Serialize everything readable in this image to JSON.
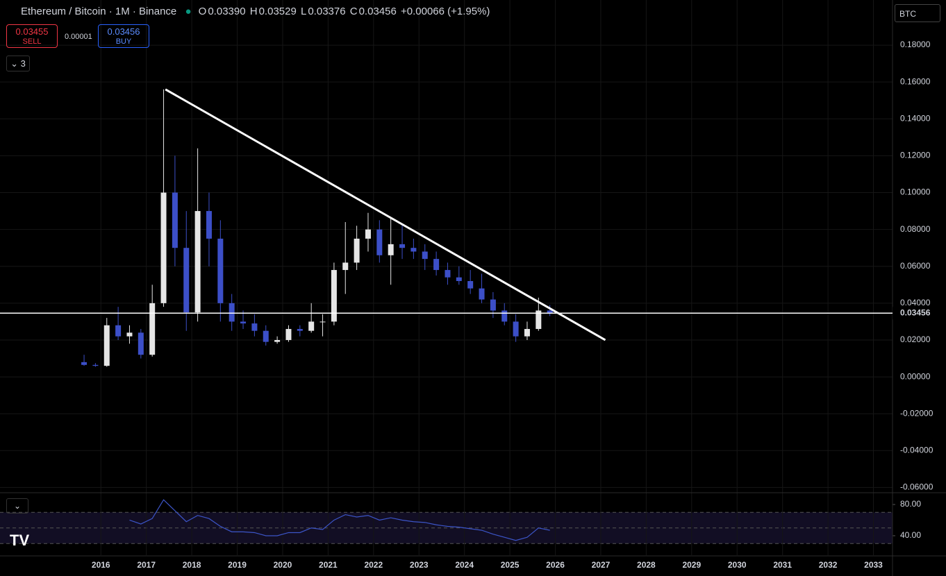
{
  "header": {
    "symbol": "Ethereum / Bitcoin · 1M · Binance",
    "open_label": "O",
    "open": "0.03390",
    "high_label": "H",
    "high": "0.03529",
    "low_label": "L",
    "low": "0.03376",
    "close_label": "C",
    "close": "0.03456",
    "change": "+0.00066 (+1.95%)"
  },
  "trade": {
    "sell_price": "0.03455",
    "sell_label": "SELL",
    "spread": "0.00001",
    "buy_price": "0.03456",
    "buy_label": "BUY"
  },
  "indicators_count": "3",
  "currency": "BTC",
  "chart_data": {
    "type": "candlestick",
    "x": [
      2015.63,
      2015.88,
      2016.13,
      2016.38,
      2016.63,
      2016.88,
      2017.13,
      2017.38,
      2017.63,
      2017.88,
      2018.13,
      2018.38,
      2018.63,
      2018.88,
      2019.13,
      2019.38,
      2019.63,
      2019.88,
      2020.13,
      2020.38,
      2020.63,
      2020.88,
      2021.13,
      2021.38,
      2021.63,
      2021.88,
      2022.13,
      2022.38,
      2022.63,
      2022.88,
      2023.13,
      2023.38,
      2023.63,
      2023.88,
      2024.13,
      2024.38,
      2024.63,
      2024.88,
      2025.13,
      2025.38,
      2025.63,
      2025.88
    ],
    "open": [
      0.008,
      0.0065,
      0.006,
      0.028,
      0.022,
      0.024,
      0.012,
      0.04,
      0.1,
      0.07,
      0.035,
      0.09,
      0.075,
      0.04,
      0.03,
      0.029,
      0.025,
      0.019,
      0.02,
      0.026,
      0.025,
      0.03,
      0.03,
      0.058,
      0.062,
      0.075,
      0.08,
      0.066,
      0.072,
      0.07,
      0.068,
      0.064,
      0.058,
      0.054,
      0.052,
      0.048,
      0.042,
      0.036,
      0.03,
      0.022,
      0.026,
      0.036
    ],
    "high": [
      0.012,
      0.0075,
      0.032,
      0.038,
      0.028,
      0.026,
      0.05,
      0.156,
      0.12,
      0.09,
      0.124,
      0.1,
      0.085,
      0.045,
      0.036,
      0.034,
      0.028,
      0.022,
      0.028,
      0.028,
      0.04,
      0.034,
      0.062,
      0.084,
      0.082,
      0.089,
      0.085,
      0.086,
      0.083,
      0.075,
      0.072,
      0.068,
      0.062,
      0.06,
      0.058,
      0.056,
      0.046,
      0.04,
      0.034,
      0.03,
      0.043,
      0.039
    ],
    "low": [
      0.006,
      0.0055,
      0.0055,
      0.02,
      0.018,
      0.01,
      0.011,
      0.038,
      0.06,
      0.025,
      0.03,
      0.06,
      0.03,
      0.025,
      0.026,
      0.022,
      0.017,
      0.018,
      0.019,
      0.022,
      0.024,
      0.022,
      0.028,
      0.045,
      0.058,
      0.068,
      0.062,
      0.05,
      0.064,
      0.064,
      0.058,
      0.055,
      0.05,
      0.05,
      0.045,
      0.04,
      0.032,
      0.028,
      0.019,
      0.02,
      0.025,
      0.033
    ],
    "close": [
      0.0065,
      0.006,
      0.028,
      0.022,
      0.024,
      0.012,
      0.04,
      0.1,
      0.07,
      0.035,
      0.09,
      0.075,
      0.04,
      0.03,
      0.029,
      0.025,
      0.019,
      0.02,
      0.026,
      0.025,
      0.03,
      0.03,
      0.058,
      0.062,
      0.075,
      0.08,
      0.066,
      0.072,
      0.07,
      0.068,
      0.064,
      0.058,
      0.054,
      0.052,
      0.048,
      0.042,
      0.036,
      0.03,
      0.022,
      0.026,
      0.036,
      0.03456
    ],
    "up_color": "#e6e6e6",
    "down_color": "#3c4fc8",
    "xlim": [
      2013.78,
      2033.42
    ],
    "xticks": [
      2016,
      2017,
      2018,
      2019,
      2020,
      2021,
      2022,
      2023,
      2024,
      2025,
      2026,
      2027,
      2028,
      2029,
      2030,
      2031,
      2032,
      2033
    ],
    "ylim": [
      -0.0621,
      0.2045
    ],
    "yticks": [
      {
        "value": 0.18,
        "label": "0.18000"
      },
      {
        "value": 0.16,
        "label": "0.16000"
      },
      {
        "value": 0.14,
        "label": "0.14000"
      },
      {
        "value": 0.12,
        "label": "0.12000"
      },
      {
        "value": 0.1,
        "label": "0.10000"
      },
      {
        "value": 0.08,
        "label": "0.08000"
      },
      {
        "value": 0.06,
        "label": "0.06000"
      },
      {
        "value": 0.04,
        "label": "0.04000"
      },
      {
        "value": 0.02,
        "label": "0.02000"
      },
      {
        "value": 0,
        "label": "0.00000"
      },
      {
        "value": -0.02,
        "label": "-0.02000"
      },
      {
        "value": -0.04,
        "label": "-0.04000"
      },
      {
        "value": -0.06,
        "label": "-0.06000"
      }
    ],
    "grid": true,
    "current_price": {
      "value": 0.03456,
      "label": "0.03456"
    },
    "trendline": {
      "x": [
        2017.42,
        2027.1
      ],
      "y": [
        0.156,
        0.02
      ]
    },
    "rsi": {
      "values": [
        null,
        null,
        null,
        null,
        60,
        55,
        62,
        86,
        72,
        58,
        66,
        62,
        52,
        45,
        45,
        44,
        40,
        40,
        44,
        44,
        50,
        48,
        60,
        67,
        64,
        66,
        60,
        63,
        60,
        58,
        57,
        54,
        52,
        51,
        49,
        47,
        42,
        38,
        34,
        38,
        50,
        47
      ],
      "color": "#3c55c8",
      "ylim": [
        15.1,
        93.3
      ],
      "yticks": [
        {
          "value": 80,
          "label": "80.00"
        },
        {
          "value": 40,
          "label": "40.00"
        }
      ],
      "bands": [
        70,
        50,
        30
      ]
    }
  }
}
